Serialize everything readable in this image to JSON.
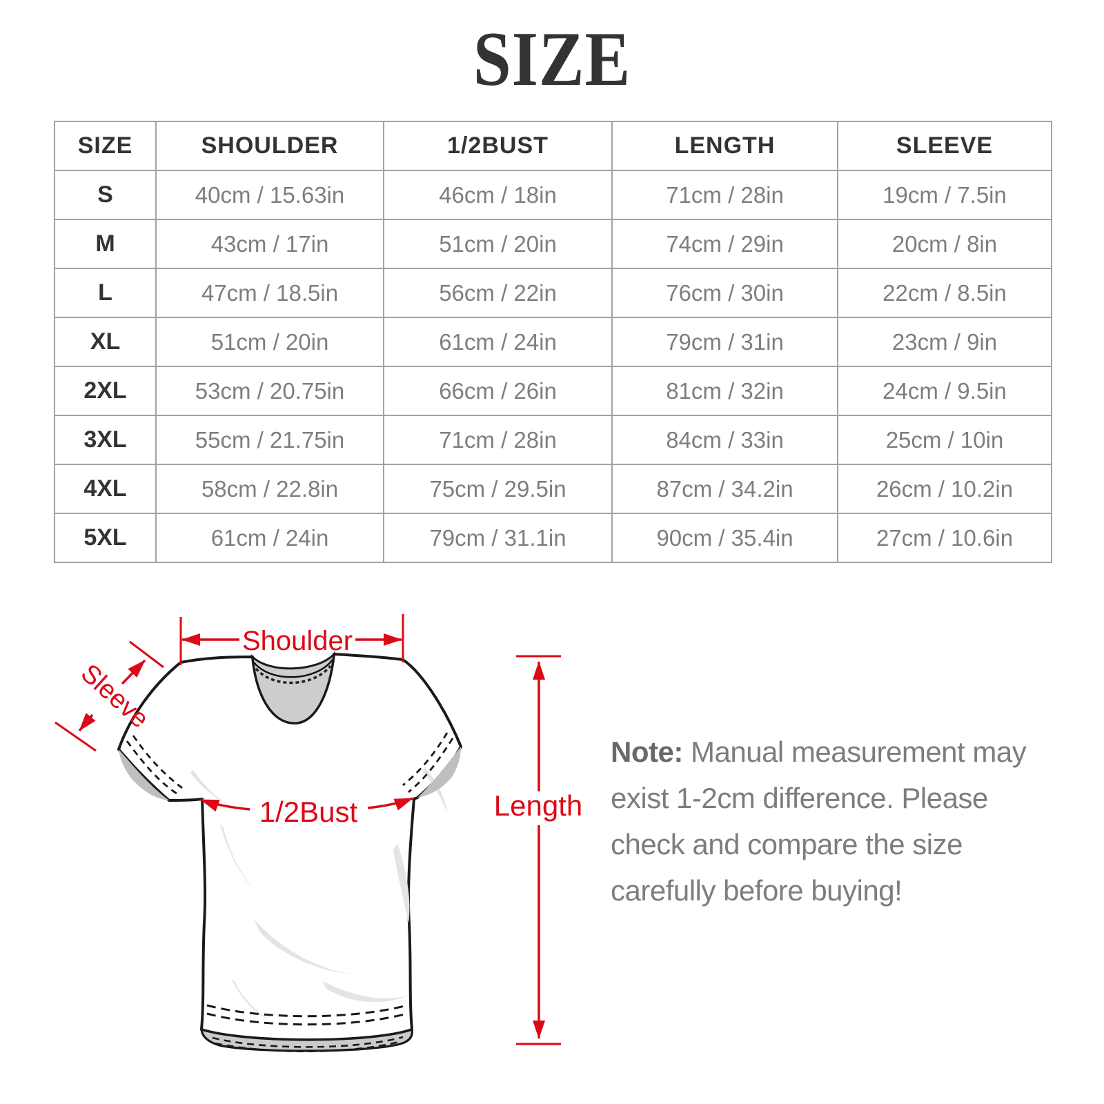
{
  "title": "SIZE",
  "table": {
    "headers": [
      "SIZE",
      "SHOULDER",
      "1/2BUST",
      "LENGTH",
      "SLEEVE"
    ],
    "rows": [
      [
        "S",
        "40cm / 15.63in",
        "46cm / 18in",
        "71cm / 28in",
        "19cm / 7.5in"
      ],
      [
        "M",
        "43cm / 17in",
        "51cm / 20in",
        "74cm / 29in",
        "20cm / 8in"
      ],
      [
        "L",
        "47cm / 18.5in",
        "56cm / 22in",
        "76cm / 30in",
        "22cm / 8.5in"
      ],
      [
        "XL",
        "51cm / 20in",
        "61cm / 24in",
        "79cm / 31in",
        "23cm / 9in"
      ],
      [
        "2XL",
        "53cm / 20.75in",
        "66cm / 26in",
        "81cm / 32in",
        "24cm / 9.5in"
      ],
      [
        "3XL",
        "55cm / 21.75in",
        "71cm / 28in",
        "84cm / 33in",
        "25cm / 10in"
      ],
      [
        "4XL",
        "58cm / 22.8in",
        "75cm / 29.5in",
        "87cm / 34.2in",
        "26cm / 10.2in"
      ],
      [
        "5XL",
        "61cm / 24in",
        "79cm / 31.1in",
        "90cm / 35.4in",
        "27cm / 10.6in"
      ]
    ]
  },
  "diagram": {
    "shoulder_label": "Shoulder",
    "sleeve_label": "Sleeve",
    "bust_label": "1/2Bust",
    "length_label": "Length",
    "annotation_color": "#dc0916"
  },
  "note": {
    "label": "Note:",
    "text": "Manual measurement may exist 1-2cm difference. Please check and compare the size carefully before buying!"
  }
}
